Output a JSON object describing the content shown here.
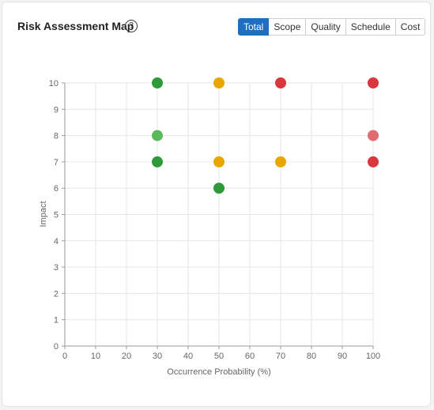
{
  "header": {
    "title": "Risk Assessment Map",
    "help_icon": "question-circle-icon",
    "tabs": [
      {
        "label": "Total",
        "active": true
      },
      {
        "label": "Scope",
        "active": false
      },
      {
        "label": "Quality",
        "active": false
      },
      {
        "label": "Schedule",
        "active": false
      },
      {
        "label": "Cost",
        "active": false
      }
    ]
  },
  "colors": {
    "accent": "#1e6fc2",
    "green": "#2e9a3a",
    "light_green": "#5cb85c",
    "amber": "#e8a600",
    "red": "#d9363e",
    "light_red": "#e06b70"
  },
  "chart_data": {
    "type": "scatter",
    "xlabel": "Occurrence Probability (%)",
    "ylabel": "Impact",
    "xlim": [
      0,
      100
    ],
    "ylim": [
      0,
      10
    ],
    "x_ticks": [
      0,
      10,
      20,
      30,
      40,
      50,
      60,
      70,
      80,
      90,
      100
    ],
    "y_ticks": [
      0,
      1,
      2,
      3,
      4,
      5,
      6,
      7,
      8,
      9,
      10
    ],
    "grid": true,
    "points": [
      {
        "x": 30,
        "y": 10,
        "color": "#2e9a3a"
      },
      {
        "x": 50,
        "y": 10,
        "color": "#e8a600"
      },
      {
        "x": 70,
        "y": 10,
        "color": "#d9363e"
      },
      {
        "x": 100,
        "y": 10,
        "color": "#d9363e"
      },
      {
        "x": 30,
        "y": 8,
        "color": "#5cb85c"
      },
      {
        "x": 100,
        "y": 8,
        "color": "#e06b70"
      },
      {
        "x": 30,
        "y": 7,
        "color": "#2e9a3a"
      },
      {
        "x": 50,
        "y": 7,
        "color": "#e8a600"
      },
      {
        "x": 70,
        "y": 7,
        "color": "#e8a600"
      },
      {
        "x": 100,
        "y": 7,
        "color": "#d9363e"
      },
      {
        "x": 50,
        "y": 6,
        "color": "#2e9a3a"
      }
    ]
  }
}
